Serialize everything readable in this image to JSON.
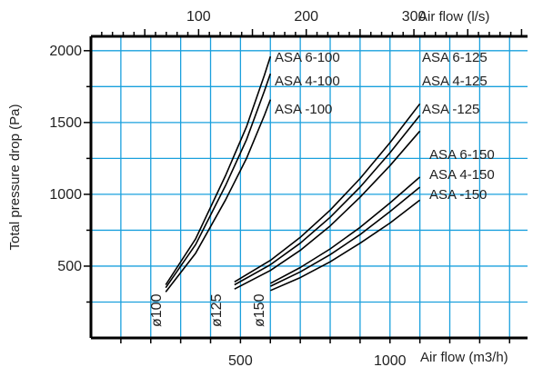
{
  "chart_data": {
    "type": "line",
    "ylabel": "Total pressure drop (Pa)",
    "xlabel_bottom": "Air flow (m3/h)",
    "xlabel_top": "Air flow (l/s)",
    "x_unit": "m3/h",
    "xlim_bottom": [
      0,
      1460
    ],
    "ylim": [
      0,
      2100
    ],
    "x_ticks_bottom": [
      500,
      1000
    ],
    "x_ticks_top": [
      100,
      200,
      300
    ],
    "y_ticks": [
      500,
      1000,
      1500,
      2000
    ],
    "grid": true,
    "series": [
      {
        "name": "ASA 6-100",
        "group": "ø100",
        "x": [
          250,
          350,
          450,
          520,
          580,
          600
        ],
        "y": [
          370,
          690,
          1130,
          1470,
          1830,
          1960
        ]
      },
      {
        "name": "ASA 4-100",
        "group": "ø100",
        "x": [
          250,
          350,
          450,
          520,
          580,
          600
        ],
        "y": [
          350,
          650,
          1060,
          1380,
          1720,
          1840
        ]
      },
      {
        "name": "ASA -100",
        "group": "ø100",
        "x": [
          250,
          350,
          450,
          520,
          580,
          600
        ],
        "y": [
          320,
          590,
          960,
          1250,
          1550,
          1660
        ]
      },
      {
        "name": "ASA 6-125",
        "group": "ø125",
        "x": [
          480,
          600,
          700,
          800,
          900,
          1000,
          1100
        ],
        "y": [
          390,
          540,
          700,
          890,
          1110,
          1360,
          1630
        ]
      },
      {
        "name": "ASA 4-125",
        "group": "ø125",
        "x": [
          480,
          600,
          700,
          800,
          900,
          1000,
          1100
        ],
        "y": [
          370,
          510,
          660,
          840,
          1050,
          1290,
          1550
        ]
      },
      {
        "name": "ASA -125",
        "group": "ø125",
        "x": [
          480,
          600,
          700,
          800,
          900,
          1000,
          1100
        ],
        "y": [
          340,
          470,
          610,
          780,
          980,
          1200,
          1440
        ]
      },
      {
        "name": "ASA 6-150",
        "group": "ø150",
        "x": [
          600,
          700,
          800,
          900,
          1000,
          1100
        ],
        "y": [
          380,
          490,
          620,
          770,
          940,
          1120
        ]
      },
      {
        "name": "ASA 4-150",
        "group": "ø150",
        "x": [
          600,
          700,
          800,
          900,
          1000,
          1100
        ],
        "y": [
          360,
          460,
          580,
          720,
          880,
          1050
        ]
      },
      {
        "name": "ASA -150",
        "group": "ø150",
        "x": [
          600,
          700,
          800,
          900,
          1000,
          1100
        ],
        "y": [
          330,
          420,
          530,
          660,
          800,
          960
        ]
      }
    ],
    "curve_labels": [
      "ASA 6-100",
      "ASA 4-100",
      "ASA -100",
      "ASA 6-125",
      "ASA 4-125",
      "ASA -125",
      "ASA 6-150",
      "ASA 4-150",
      "ASA -150"
    ],
    "group_labels": [
      "ø100",
      "ø125",
      "ø150"
    ],
    "colors": {
      "grid": "#1aa0dd",
      "axis": "#000000",
      "curve": "#000000"
    }
  }
}
